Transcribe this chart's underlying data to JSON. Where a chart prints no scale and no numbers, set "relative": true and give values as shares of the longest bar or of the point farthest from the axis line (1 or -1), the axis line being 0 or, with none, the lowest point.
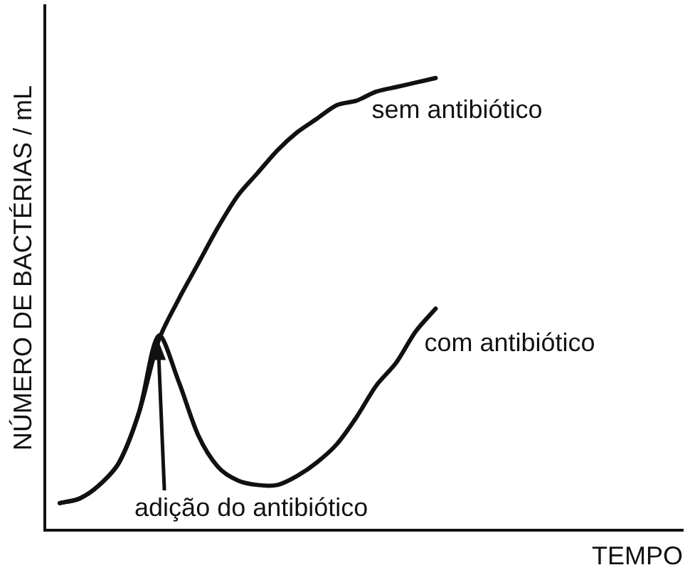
{
  "chart_data": {
    "type": "line",
    "relative": true,
    "ylabel": "NÚMERO DE BACTÉRIAS / mL",
    "categories": [
      null,
      null,
      null,
      null,
      null,
      null,
      null,
      null,
      null,
      null,
      null,
      null,
      null,
      null,
      null,
      null,
      null,
      null,
      null,
      null
    ],
    "series": [
      {
        "name": "sem antibiótico",
        "color": "#111111",
        "values": [
          0.06,
          0.07,
          0.1,
          0.15,
          0.26,
          0.42,
          0.51,
          0.59,
          0.67,
          0.74,
          0.79,
          0.84,
          0.88,
          0.91,
          0.94,
          0.95,
          0.97,
          0.98,
          0.99,
          1.0
        ]
      },
      {
        "name": "com antibiótico",
        "color": "#111111",
        "values": [
          0.06,
          0.07,
          0.1,
          0.15,
          0.26,
          0.43,
          0.33,
          0.21,
          0.14,
          0.11,
          0.1,
          0.1,
          0.12,
          0.15,
          0.19,
          0.25,
          0.32,
          0.37,
          0.44,
          0.49
        ]
      }
    ],
    "annotations": [
      "adição do antibiótico",
      "TEMPO"
    ],
    "grid": false,
    "legend": false,
    "tick_labels": false,
    "marker": "none",
    "line_style": "solid"
  }
}
